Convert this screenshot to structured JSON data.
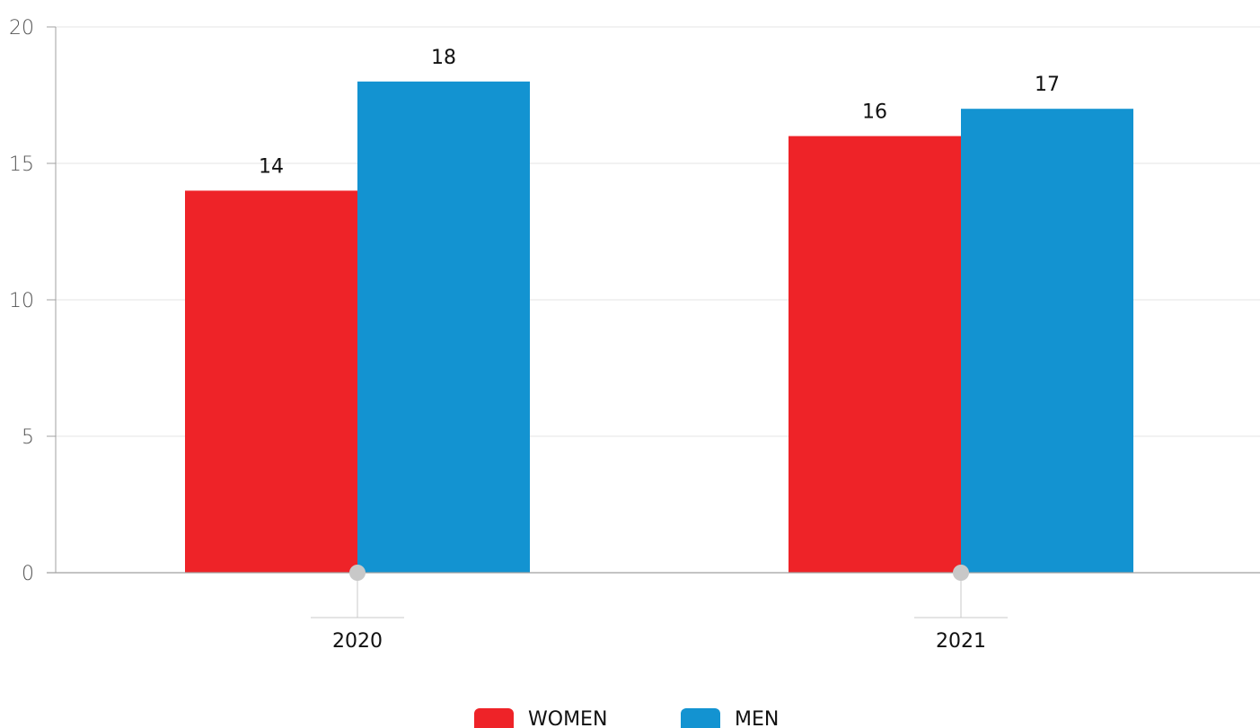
{
  "chart_data": {
    "type": "bar",
    "categories": [
      "2020",
      "2021"
    ],
    "series": [
      {
        "name": "WOMEN",
        "values": [
          14,
          16
        ],
        "color": "#EE2328"
      },
      {
        "name": "MEN",
        "values": [
          18,
          17
        ],
        "color": "#1393D1"
      }
    ],
    "yticks": [
      "0",
      "5",
      "10",
      "15",
      "20"
    ],
    "ylim": [
      0,
      20
    ],
    "grid": true,
    "legend": "bottom",
    "title": "",
    "xlabel": "",
    "ylabel": "",
    "colors": {
      "grid": "#E6E6E6",
      "axis": "#A0A0A0",
      "marker": "#C8C8C8"
    }
  }
}
